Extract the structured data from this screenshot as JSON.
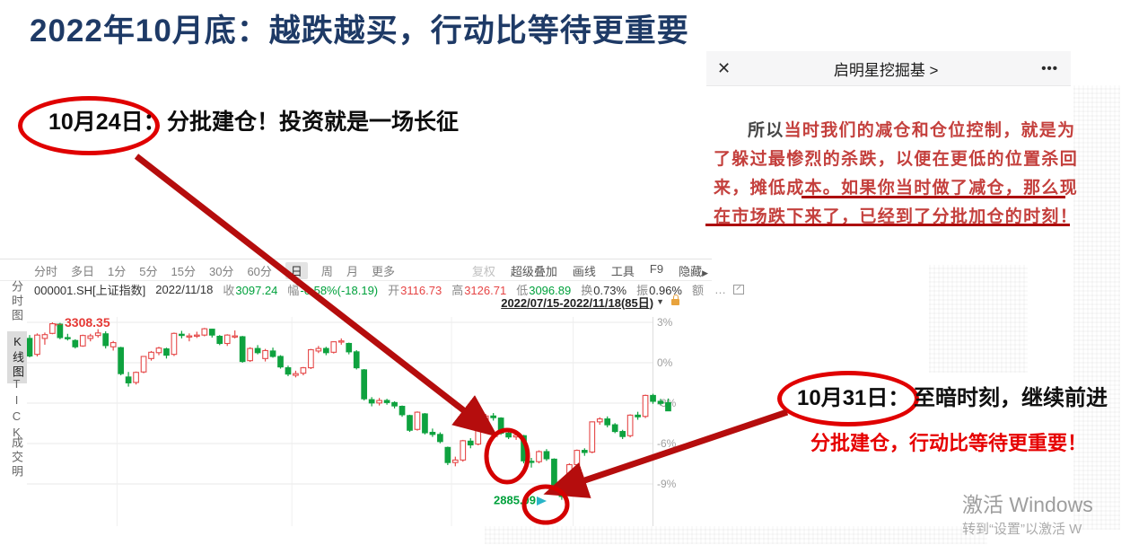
{
  "title": "2022年10月底：越跌越买，行动比等待更重要",
  "annotation1": {
    "circle_label": "10月24日：",
    "text": "分批建仓！投资就是一场长征"
  },
  "annotation2": {
    "circle_label": "10月31日：",
    "text": "至暗时刻，继续前进",
    "subtext": "分批建仓，行动比等待更重要！"
  },
  "wechat": {
    "close_icon": "✕",
    "title": "启明星挖掘基 >",
    "more_icon": "•••",
    "line1_prefix": "所以",
    "line1_rest": "当时我们的减仓和仓位控制，就是为",
    "line2": "了躲过最惨烈的杀跌，以便在更低的位置杀回",
    "line3": "来，摊低成本。如果你当时做了减仓，那么现",
    "line4": "在市场跌下来了，已经到了分批加仓的时刻！"
  },
  "terminal": {
    "period_tabs": [
      "分时",
      "多日",
      "1分",
      "5分",
      "15分",
      "30分",
      "60分",
      "日",
      "周",
      "月",
      "更多"
    ],
    "active_period": "日",
    "right_tools": [
      {
        "label": "复权",
        "muted": true
      },
      {
        "label": "超级叠加"
      },
      {
        "label": "画线"
      },
      {
        "label": "工具"
      },
      {
        "label": "F9"
      },
      {
        "label": "隐藏",
        "chevron": "▶"
      }
    ],
    "info_segments": [
      {
        "value": "000001.SH[上证指数]",
        "color": "dark"
      },
      {
        "value": "2022/11/18",
        "color": "dark"
      },
      {
        "label": "收",
        "value": "3097.24",
        "color": "green"
      },
      {
        "label": "幅",
        "value": "-0.58%(-18.19)",
        "color": "green"
      },
      {
        "label": "开",
        "value": "3116.73",
        "color": "red"
      },
      {
        "label": "高",
        "value": "3126.71",
        "color": "red"
      },
      {
        "label": "低",
        "value": "3096.89",
        "color": "green"
      },
      {
        "label": "换",
        "value": "0.73%",
        "color": "dark"
      },
      {
        "label": "振",
        "value": "0.96%",
        "color": "dark"
      },
      {
        "label": "额",
        "value": "",
        "color": "dark"
      }
    ],
    "info_extra": "…",
    "date_range": "2022/07/15-2022/11/18(85日)",
    "dropdown_icon": "▼",
    "side_tabs": [
      "分时图",
      "K线图",
      "TICK",
      "成交明"
    ],
    "active_side_tab": "K线图"
  },
  "chart_data": {
    "type": "candlestick",
    "symbol": "000001.SH",
    "name": "上证指数",
    "date_range": "2022/07/15-2022/11/18",
    "days": 85,
    "baseline": 3212,
    "y_ticks": [
      "3%",
      "0%",
      "-3%",
      "-6%",
      "-9%"
    ],
    "y_tick_values": [
      3,
      0,
      -3,
      -6,
      -9
    ],
    "month_grid_indices": [
      11,
      34,
      55,
      71
    ],
    "high_label": "3308.35",
    "high_arrow": "←",
    "low_label": "2885.09",
    "up_color": "#e54848",
    "down_color": "#0ea23f",
    "high_label_color": "#e53935",
    "low_label_color": "#00a13c",
    "low_marker_color": "#2ab5c8",
    "candles": [
      [
        3270,
        3278,
        3225,
        3228
      ],
      [
        3232,
        3282,
        3227,
        3278
      ],
      [
        3270,
        3284,
        3255,
        3279
      ],
      [
        3282,
        3308.35,
        3280,
        3305
      ],
      [
        3304,
        3307,
        3268,
        3272
      ],
      [
        3272,
        3281,
        3265,
        3270
      ],
      [
        3265,
        3268,
        3246,
        3250
      ],
      [
        3252,
        3279,
        3250,
        3277
      ],
      [
        3270,
        3281,
        3263,
        3276
      ],
      [
        3277,
        3292,
        3272,
        3283
      ],
      [
        3281,
        3287,
        3246,
        3253
      ],
      [
        3250,
        3264,
        3241,
        3260
      ],
      [
        3248,
        3250,
        3182,
        3186
      ],
      [
        3178,
        3190,
        3155,
        3164
      ],
      [
        3165,
        3191,
        3160,
        3189
      ],
      [
        3190,
        3228,
        3187,
        3227
      ],
      [
        3222,
        3240,
        3217,
        3237
      ],
      [
        3236,
        3250,
        3230,
        3247
      ],
      [
        3245,
        3248,
        3222,
        3230
      ],
      [
        3232,
        3284,
        3228,
        3282
      ],
      [
        3280,
        3288,
        3270,
        3277
      ],
      [
        3274,
        3282,
        3263,
        3276
      ],
      [
        3276,
        3286,
        3271,
        3278
      ],
      [
        3278,
        3295,
        3275,
        3293
      ],
      [
        3292,
        3293,
        3272,
        3278
      ],
      [
        3275,
        3278,
        3254,
        3258
      ],
      [
        3258,
        3280,
        3252,
        3278
      ],
      [
        3276,
        3289,
        3270,
        3276
      ],
      [
        3274,
        3276,
        3212,
        3215
      ],
      [
        3217,
        3249,
        3214,
        3246
      ],
      [
        3246,
        3254,
        3232,
        3236
      ],
      [
        3222,
        3245,
        3215,
        3241
      ],
      [
        3240,
        3248,
        3224,
        3227
      ],
      [
        3227,
        3230,
        3198,
        3202
      ],
      [
        3200,
        3205,
        3180,
        3185
      ],
      [
        3182,
        3193,
        3177,
        3186
      ],
      [
        3187,
        3202,
        3182,
        3200
      ],
      [
        3200,
        3245,
        3197,
        3243
      ],
      [
        3240,
        3252,
        3235,
        3246
      ],
      [
        3246,
        3250,
        3230,
        3236
      ],
      [
        3237,
        3263,
        3234,
        3262
      ],
      [
        3263,
        3270,
        3255,
        3264
      ],
      [
        3258,
        3260,
        3232,
        3238
      ],
      [
        3238,
        3242,
        3196,
        3200
      ],
      [
        3195,
        3197,
        3122,
        3126
      ],
      [
        3124,
        3130,
        3108,
        3116
      ],
      [
        3116,
        3128,
        3110,
        3122
      ],
      [
        3122,
        3126,
        3112,
        3117
      ],
      [
        3117,
        3120,
        3103,
        3109
      ],
      [
        3108,
        3110,
        3083,
        3088
      ],
      [
        3086,
        3088,
        3047,
        3051
      ],
      [
        3053,
        3096,
        3050,
        3094
      ],
      [
        3090,
        3092,
        3041,
        3045
      ],
      [
        3046,
        3055,
        3035,
        3041
      ],
      [
        3041,
        3046,
        3020,
        3024
      ],
      [
        3010,
        3012,
        2968,
        2974
      ],
      [
        2974,
        2988,
        2965,
        2980
      ],
      [
        2980,
        3028,
        2976,
        3026
      ],
      [
        3025,
        3032,
        3008,
        3016
      ],
      [
        3018,
        3074,
        3015,
        3072
      ],
      [
        3072,
        3090,
        3068,
        3085
      ],
      [
        3085,
        3092,
        3074,
        3081
      ],
      [
        3080,
        3082,
        3040,
        3044
      ],
      [
        3044,
        3050,
        3030,
        3035
      ],
      [
        3035,
        3046,
        3028,
        3039
      ],
      [
        3038,
        3040,
        2972,
        2978
      ],
      [
        2977,
        2985,
        2962,
        2976
      ],
      [
        2976,
        3003,
        2972,
        3000
      ],
      [
        3000,
        3006,
        2978,
        2983
      ],
      [
        2982,
        2984,
        2912,
        2916
      ],
      [
        2916,
        2918,
        2885.09,
        2893
      ],
      [
        2898,
        2972,
        2894,
        2969
      ],
      [
        2969,
        3005,
        2965,
        3003
      ],
      [
        3003,
        3008,
        2990,
        2998
      ],
      [
        2999,
        3072,
        2996,
        3071
      ],
      [
        3071,
        3082,
        3064,
        3078
      ],
      [
        3078,
        3084,
        3058,
        3064
      ],
      [
        3064,
        3068,
        3044,
        3048
      ],
      [
        3048,
        3052,
        3030,
        3036
      ],
      [
        3038,
        3089,
        3034,
        3087
      ],
      [
        3087,
        3095,
        3076,
        3083
      ],
      [
        3084,
        3136,
        3080,
        3134
      ],
      [
        3134,
        3138,
        3114,
        3120
      ],
      [
        3120,
        3126,
        3110,
        3115
      ],
      [
        3116.73,
        3126.71,
        3096.89,
        3097.24
      ]
    ]
  },
  "watermark": {
    "line1": "激活 Windows",
    "line2": "转到“设置”以激活 W"
  }
}
